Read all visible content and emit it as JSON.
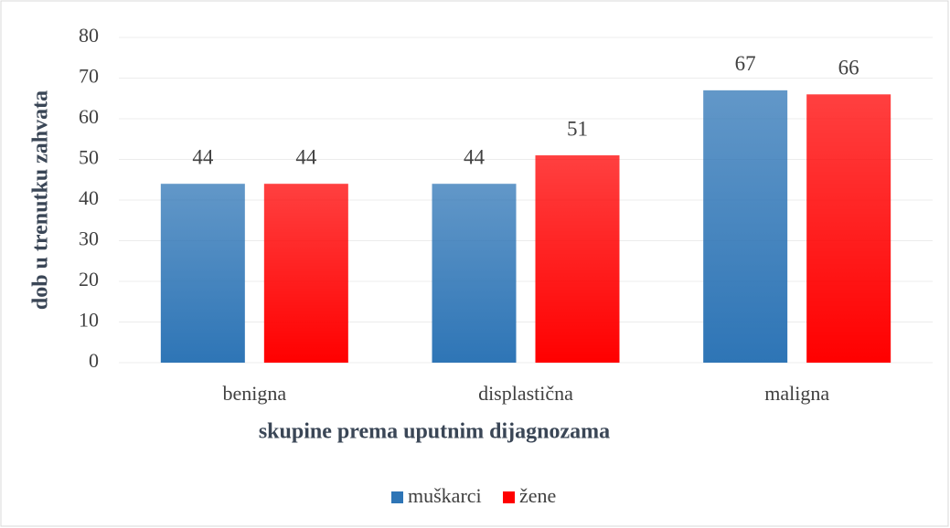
{
  "chart_data": {
    "type": "bar",
    "x_label": "skupine prema uputnim dijagnozama",
    "y_label": "dob u trenutku zahvata",
    "categories": [
      "benigna",
      "displastična",
      "maligna"
    ],
    "series": [
      {
        "name": "muškarci",
        "color": "#2e75b6",
        "values": [
          44,
          44,
          67
        ]
      },
      {
        "name": "žene",
        "color": "#ff0000",
        "values": [
          44,
          51,
          66
        ]
      }
    ],
    "ylim": [
      0,
      80
    ],
    "yticks": [
      0,
      10,
      20,
      30,
      40,
      50,
      60,
      70,
      80
    ],
    "grid": true,
    "legend": "bottom"
  }
}
